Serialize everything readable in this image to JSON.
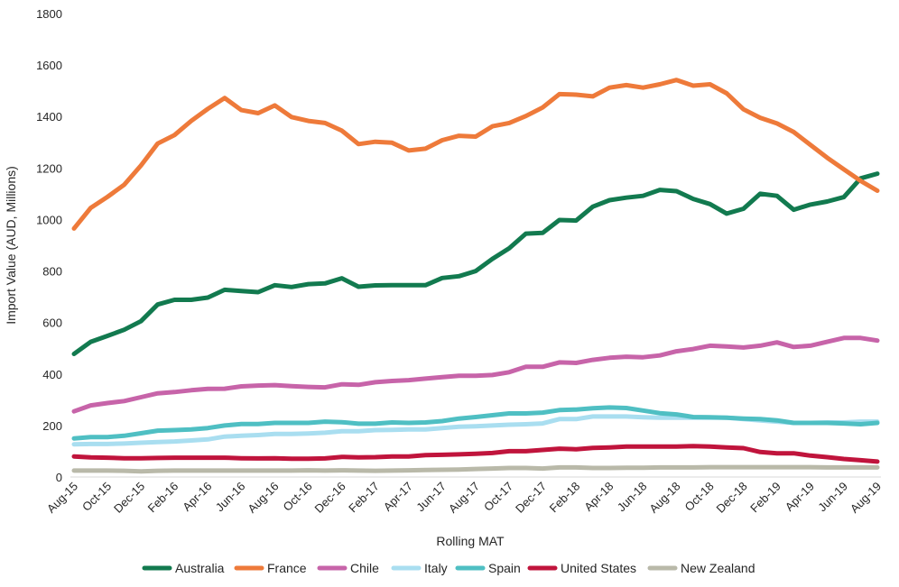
{
  "chart_data": {
    "type": "line",
    "title": "",
    "xlabel": "Rolling MAT",
    "ylabel": "Import Value (AUD, Millions)",
    "ylim": [
      0,
      1800
    ],
    "yticks": [
      0,
      200,
      400,
      600,
      800,
      1000,
      1200,
      1400,
      1600,
      1800
    ],
    "grid": false,
    "legend_position": "bottom",
    "x": [
      "Aug-15",
      "Sep-15",
      "Oct-15",
      "Nov-15",
      "Dec-15",
      "Jan-16",
      "Feb-16",
      "Mar-16",
      "Apr-16",
      "May-16",
      "Jun-16",
      "Jul-16",
      "Aug-16",
      "Sep-16",
      "Oct-16",
      "Nov-16",
      "Dec-16",
      "Jan-17",
      "Feb-17",
      "Mar-17",
      "Apr-17",
      "May-17",
      "Jun-17",
      "Jul-17",
      "Aug-17",
      "Sep-17",
      "Oct-17",
      "Nov-17",
      "Dec-17",
      "Jan-18",
      "Feb-18",
      "Mar-18",
      "Apr-18",
      "May-18",
      "Jun-18",
      "Jul-18",
      "Aug-18",
      "Sep-18",
      "Oct-18",
      "Nov-18",
      "Dec-18",
      "Jan-19",
      "Feb-19",
      "Mar-19",
      "Apr-19",
      "May-19",
      "Jun-19",
      "Jul-19",
      "Aug-19"
    ],
    "x_tick_labels": [
      "Aug-15",
      "",
      "Oct-15",
      "",
      "Dec-15",
      "",
      "Feb-16",
      "",
      "Apr-16",
      "",
      "Jun-16",
      "",
      "Aug-16",
      "",
      "Oct-16",
      "",
      "Dec-16",
      "",
      "Feb-17",
      "",
      "Apr-17",
      "",
      "Jun-17",
      "",
      "Aug-17",
      "",
      "Oct-17",
      "",
      "Dec-17",
      "",
      "Feb-18",
      "",
      "Apr-18",
      "",
      "Jun-18",
      "",
      "Aug-18",
      "",
      "Oct-18",
      "",
      "Dec-18",
      "",
      "Feb-19",
      "",
      "Apr-19",
      "",
      "Jun-19",
      "",
      "Aug-19"
    ],
    "series": [
      {
        "name": "Australia",
        "color": "#127a4f",
        "values": [
          478,
          525,
          548,
          572,
          605,
          670,
          688,
          688,
          697,
          727,
          722,
          718,
          745,
          738,
          749,
          752,
          772,
          739,
          744,
          745,
          745,
          745,
          773,
          780,
          800,
          847,
          888,
          945,
          948,
          998,
          996,
          1050,
          1075,
          1085,
          1092,
          1115,
          1110,
          1080,
          1060,
          1023,
          1042,
          1100,
          1092,
          1038,
          1058,
          1070,
          1087,
          1160,
          1178
        ]
      },
      {
        "name": "France",
        "color": "#ee7a3a",
        "values": [
          965,
          1045,
          1088,
          1135,
          1210,
          1295,
          1328,
          1383,
          1430,
          1472,
          1425,
          1413,
          1443,
          1398,
          1383,
          1375,
          1345,
          1293,
          1302,
          1298,
          1268,
          1275,
          1308,
          1325,
          1322,
          1362,
          1375,
          1402,
          1435,
          1487,
          1485,
          1478,
          1512,
          1522,
          1512,
          1525,
          1542,
          1520,
          1525,
          1490,
          1428,
          1395,
          1373,
          1340,
          1290,
          1240,
          1195,
          1150,
          1112
        ]
      },
      {
        "name": "Chile",
        "color": "#c764a9",
        "values": [
          255,
          278,
          287,
          295,
          310,
          325,
          330,
          337,
          342,
          343,
          352,
          355,
          357,
          353,
          350,
          348,
          360,
          358,
          368,
          373,
          376,
          382,
          388,
          393,
          393,
          396,
          407,
          428,
          428,
          445,
          443,
          455,
          463,
          467,
          465,
          472,
          488,
          497,
          510,
          507,
          503,
          510,
          523,
          505,
          510,
          525,
          540,
          540,
          530
        ]
      },
      {
        "name": "Italy",
        "color": "#a9def0",
        "values": [
          127,
          128,
          128,
          130,
          133,
          136,
          138,
          142,
          146,
          157,
          160,
          163,
          167,
          167,
          169,
          172,
          178,
          178,
          182,
          183,
          185,
          185,
          190,
          195,
          197,
          200,
          203,
          205,
          208,
          225,
          225,
          235,
          235,
          235,
          232,
          230,
          230,
          230,
          230,
          230,
          225,
          220,
          215,
          210,
          210,
          212,
          212,
          215,
          215
        ]
      },
      {
        "name": "Spain",
        "color": "#4fbfc3",
        "values": [
          150,
          155,
          155,
          160,
          170,
          180,
          182,
          185,
          190,
          200,
          206,
          206,
          210,
          210,
          210,
          215,
          213,
          207,
          207,
          212,
          210,
          212,
          217,
          227,
          233,
          240,
          247,
          247,
          250,
          260,
          262,
          267,
          270,
          268,
          258,
          248,
          243,
          233,
          232,
          230,
          227,
          225,
          220,
          210,
          210,
          210,
          208,
          205,
          210
        ]
      },
      {
        "name": "United States",
        "color": "#c0143c",
        "values": [
          80,
          76,
          75,
          73,
          73,
          74,
          75,
          75,
          75,
          75,
          73,
          72,
          73,
          71,
          71,
          72,
          78,
          76,
          77,
          80,
          80,
          85,
          86,
          88,
          90,
          93,
          100,
          100,
          105,
          110,
          108,
          113,
          115,
          118,
          118,
          118,
          118,
          120,
          118,
          115,
          112,
          97,
          92,
          92,
          83,
          77,
          70,
          65,
          60
        ]
      },
      {
        "name": "New Zealand",
        "color": "#b9b9a9",
        "values": [
          25,
          25,
          25,
          24,
          22,
          24,
          25,
          25,
          25,
          25,
          25,
          25,
          25,
          25,
          26,
          25,
          26,
          25,
          24,
          25,
          26,
          27,
          28,
          29,
          31,
          33,
          35,
          35,
          33,
          37,
          37,
          35,
          35,
          36,
          36,
          37,
          37,
          37,
          38,
          38,
          38,
          38,
          38,
          38,
          38,
          37,
          37,
          37,
          37
        ]
      }
    ]
  }
}
